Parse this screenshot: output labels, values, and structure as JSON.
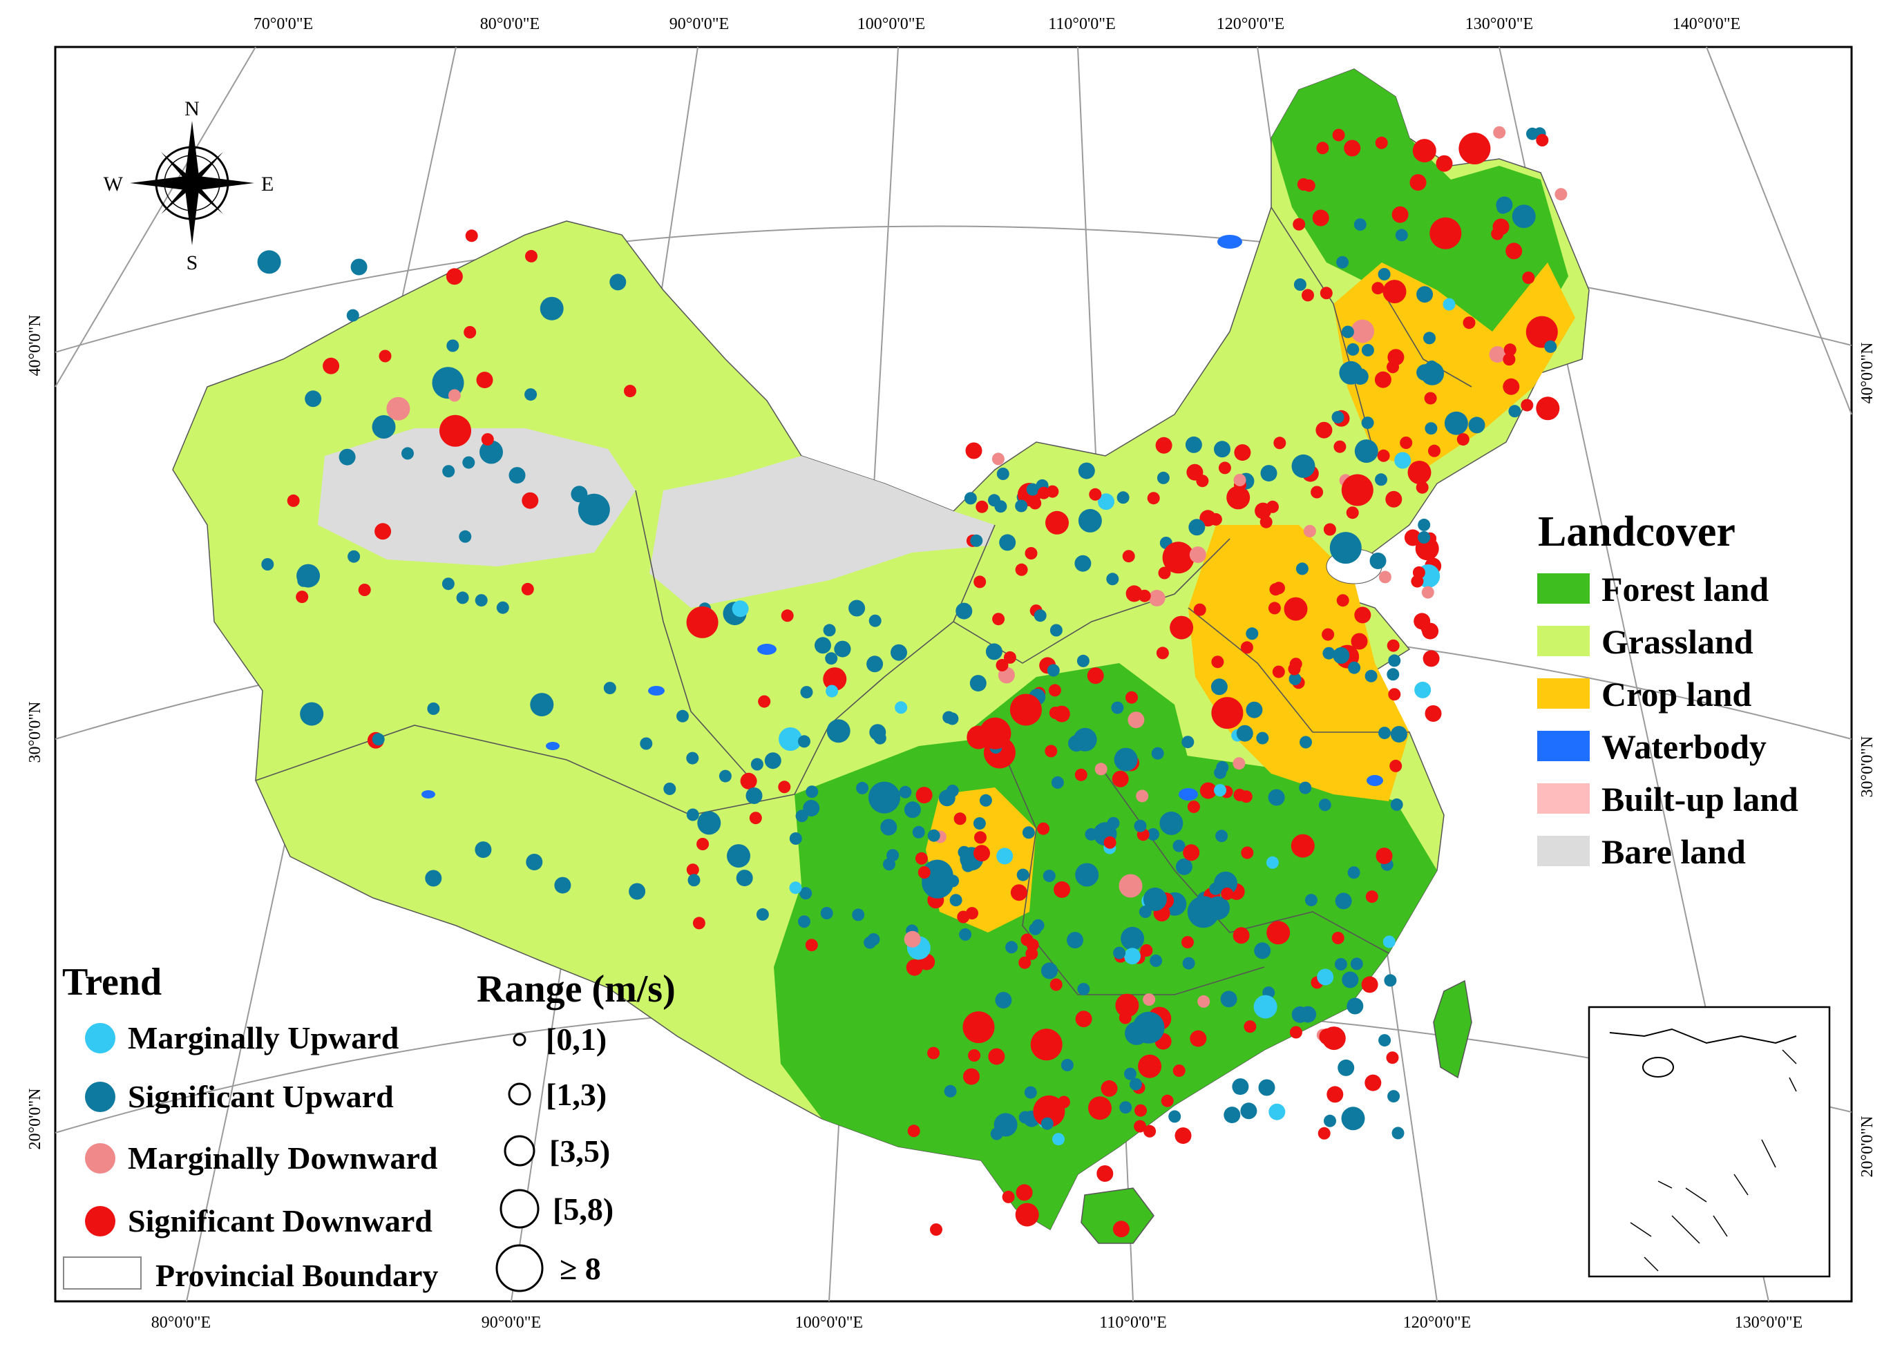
{
  "axes": {
    "top_ticks": [
      "70°0'0\"E",
      "80°0'0\"E",
      "90°0'0\"E",
      "100°0'0\"E",
      "110°0'0\"E",
      "120°0'0\"E",
      "130°0'0\"E",
      "140°0'0\"E"
    ],
    "bottom_ticks": [
      "80°0'0\"E",
      "90°0'0\"E",
      "100°0'0\"E",
      "110°0'0\"E",
      "120°0'0\"E",
      "130°0'0\"E"
    ],
    "left_ticks": [
      "40°0'0\"N",
      "30°0'0\"N",
      "20°0'0\"N"
    ],
    "right_ticks": [
      "40°0'0\"N",
      "30°0'0\"N",
      "20°0'0\"N"
    ]
  },
  "compass": {
    "n": "N",
    "s": "S",
    "e": "E",
    "w": "W"
  },
  "landcover_legend": {
    "title": "Landcover",
    "items": [
      {
        "label": "Forest land",
        "color": "#3fbf1f"
      },
      {
        "label": "Grassland",
        "color": "#ccf56a"
      },
      {
        "label": "Crop land",
        "color": "#ffc90e"
      },
      {
        "label": "Waterbody",
        "color": "#1e6fff"
      },
      {
        "label": "Built-up land",
        "color": "#ffbcbc"
      },
      {
        "label": "Bare land",
        "color": "#dcdcdc"
      }
    ]
  },
  "trend_legend": {
    "title": "Trend",
    "items": [
      {
        "label": "Marginally Upward",
        "color": "#33c9f2"
      },
      {
        "label": "Significant Upward",
        "color": "#0f7a9f"
      },
      {
        "label": "Marginally Downward",
        "color": "#f08a8a"
      },
      {
        "label": "Significant Downward",
        "color": "#ee1111"
      }
    ],
    "boundary_label": "Provincial Boundary"
  },
  "range_legend": {
    "title": "Range (m/s)",
    "items": [
      "[0,1)",
      "[1,3)",
      "[3,5)",
      "[5,8)",
      "≥ 8"
    ]
  }
}
